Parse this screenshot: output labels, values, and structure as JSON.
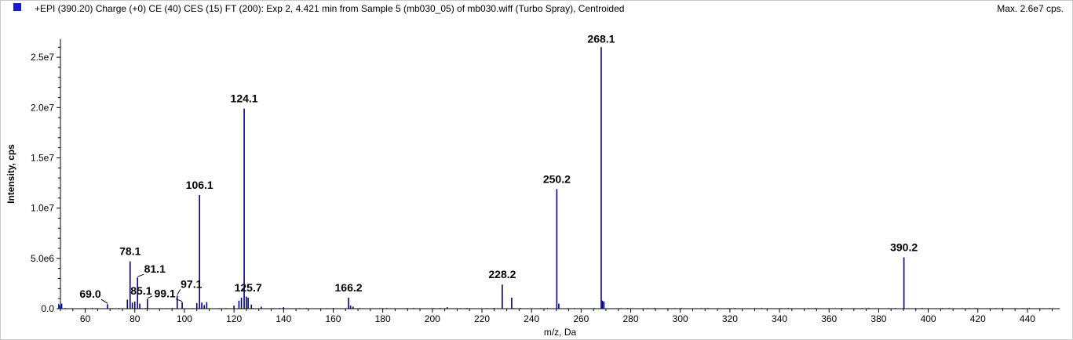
{
  "header": {
    "title": "+EPI (390.20) Charge (+0) CE (40) CES (15) FT (200): Exp 2, 4.421 min from Sample 5 (mb030_05) of mb030.wiff (Turbo Spray), Centroided",
    "max_label": "Max. 2.6e7 cps."
  },
  "colors": {
    "series": "#00008b",
    "legend_marker": "#1a1acd"
  },
  "chart_data": {
    "type": "bar",
    "title": "+EPI (390.20) Charge (+0) CE (40) CES (15) FT (200): Exp 2, 4.421 min from Sample 5 (mb030_05) of mb030.wiff (Turbo Spray), Centroided",
    "xlabel": "m/z, Da",
    "ylabel": "Intensity, cps",
    "xlim": [
      50,
      453
    ],
    "ylim": [
      0,
      26800000
    ],
    "x_ticks": [
      60,
      80,
      100,
      120,
      140,
      160,
      180,
      200,
      220,
      240,
      260,
      280,
      300,
      320,
      340,
      360,
      380,
      400,
      420,
      440
    ],
    "x_tick_labels": [
      "60",
      "80",
      "100",
      "120",
      "140",
      "160",
      "180",
      "200",
      "220",
      "240",
      "260",
      "280",
      "300",
      "320",
      "340",
      "360",
      "380",
      "400",
      "420",
      "440"
    ],
    "y_ticks": [
      0,
      5000000,
      10000000,
      15000000,
      20000000,
      25000000
    ],
    "y_tick_labels": [
      "0.0",
      "5.0e6",
      "1.0e7",
      "1.5e7",
      "2.0e7",
      "2.5e7"
    ],
    "grid": false,
    "peaks": [
      {
        "mz": 50.5,
        "intensity": 500000
      },
      {
        "mz": 69.0,
        "intensity": 450000
      },
      {
        "mz": 77.0,
        "intensity": 900000
      },
      {
        "mz": 78.1,
        "intensity": 4700000
      },
      {
        "mz": 79.0,
        "intensity": 600000
      },
      {
        "mz": 80.0,
        "intensity": 700000
      },
      {
        "mz": 81.1,
        "intensity": 3100000
      },
      {
        "mz": 82.0,
        "intensity": 500000
      },
      {
        "mz": 85.1,
        "intensity": 950000
      },
      {
        "mz": 97.1,
        "intensity": 1300000
      },
      {
        "mz": 99.1,
        "intensity": 650000
      },
      {
        "mz": 105.0,
        "intensity": 550000
      },
      {
        "mz": 106.1,
        "intensity": 11300000
      },
      {
        "mz": 107.0,
        "intensity": 600000
      },
      {
        "mz": 108.0,
        "intensity": 350000
      },
      {
        "mz": 109.0,
        "intensity": 650000
      },
      {
        "mz": 120.0,
        "intensity": 300000
      },
      {
        "mz": 122.0,
        "intensity": 800000
      },
      {
        "mz": 123.0,
        "intensity": 1100000
      },
      {
        "mz": 124.1,
        "intensity": 19900000
      },
      {
        "mz": 125.0,
        "intensity": 1200000
      },
      {
        "mz": 125.7,
        "intensity": 1100000
      },
      {
        "mz": 127.0,
        "intensity": 400000
      },
      {
        "mz": 131.0,
        "intensity": 200000
      },
      {
        "mz": 140.0,
        "intensity": 150000
      },
      {
        "mz": 166.2,
        "intensity": 1100000
      },
      {
        "mz": 167.0,
        "intensity": 300000
      },
      {
        "mz": 168.0,
        "intensity": 200000
      },
      {
        "mz": 206.0,
        "intensity": 150000
      },
      {
        "mz": 228.2,
        "intensity": 2400000
      },
      {
        "mz": 232.0,
        "intensity": 1100000
      },
      {
        "mz": 250.2,
        "intensity": 11900000
      },
      {
        "mz": 251.0,
        "intensity": 500000
      },
      {
        "mz": 268.1,
        "intensity": 26000000
      },
      {
        "mz": 268.6,
        "intensity": 800000
      },
      {
        "mz": 269.2,
        "intensity": 700000
      },
      {
        "mz": 390.2,
        "intensity": 5100000
      }
    ],
    "peak_labels": [
      {
        "text": "69.0",
        "mz": 69.0
      },
      {
        "text": "78.1",
        "mz": 78.1
      },
      {
        "text": "81.1",
        "mz": 81.1
      },
      {
        "text": "85.1",
        "mz": 85.1
      },
      {
        "text": "97.1",
        "mz": 97.1
      },
      {
        "text": "99.1",
        "mz": 99.1
      },
      {
        "text": "106.1",
        "mz": 106.1
      },
      {
        "text": "124.1",
        "mz": 124.1
      },
      {
        "text": "125.7",
        "mz": 125.7
      },
      {
        "text": "166.2",
        "mz": 166.2
      },
      {
        "text": "228.2",
        "mz": 228.2
      },
      {
        "text": "250.2",
        "mz": 250.2
      },
      {
        "text": "268.1",
        "mz": 268.1
      },
      {
        "text": "390.2",
        "mz": 390.2
      }
    ]
  }
}
